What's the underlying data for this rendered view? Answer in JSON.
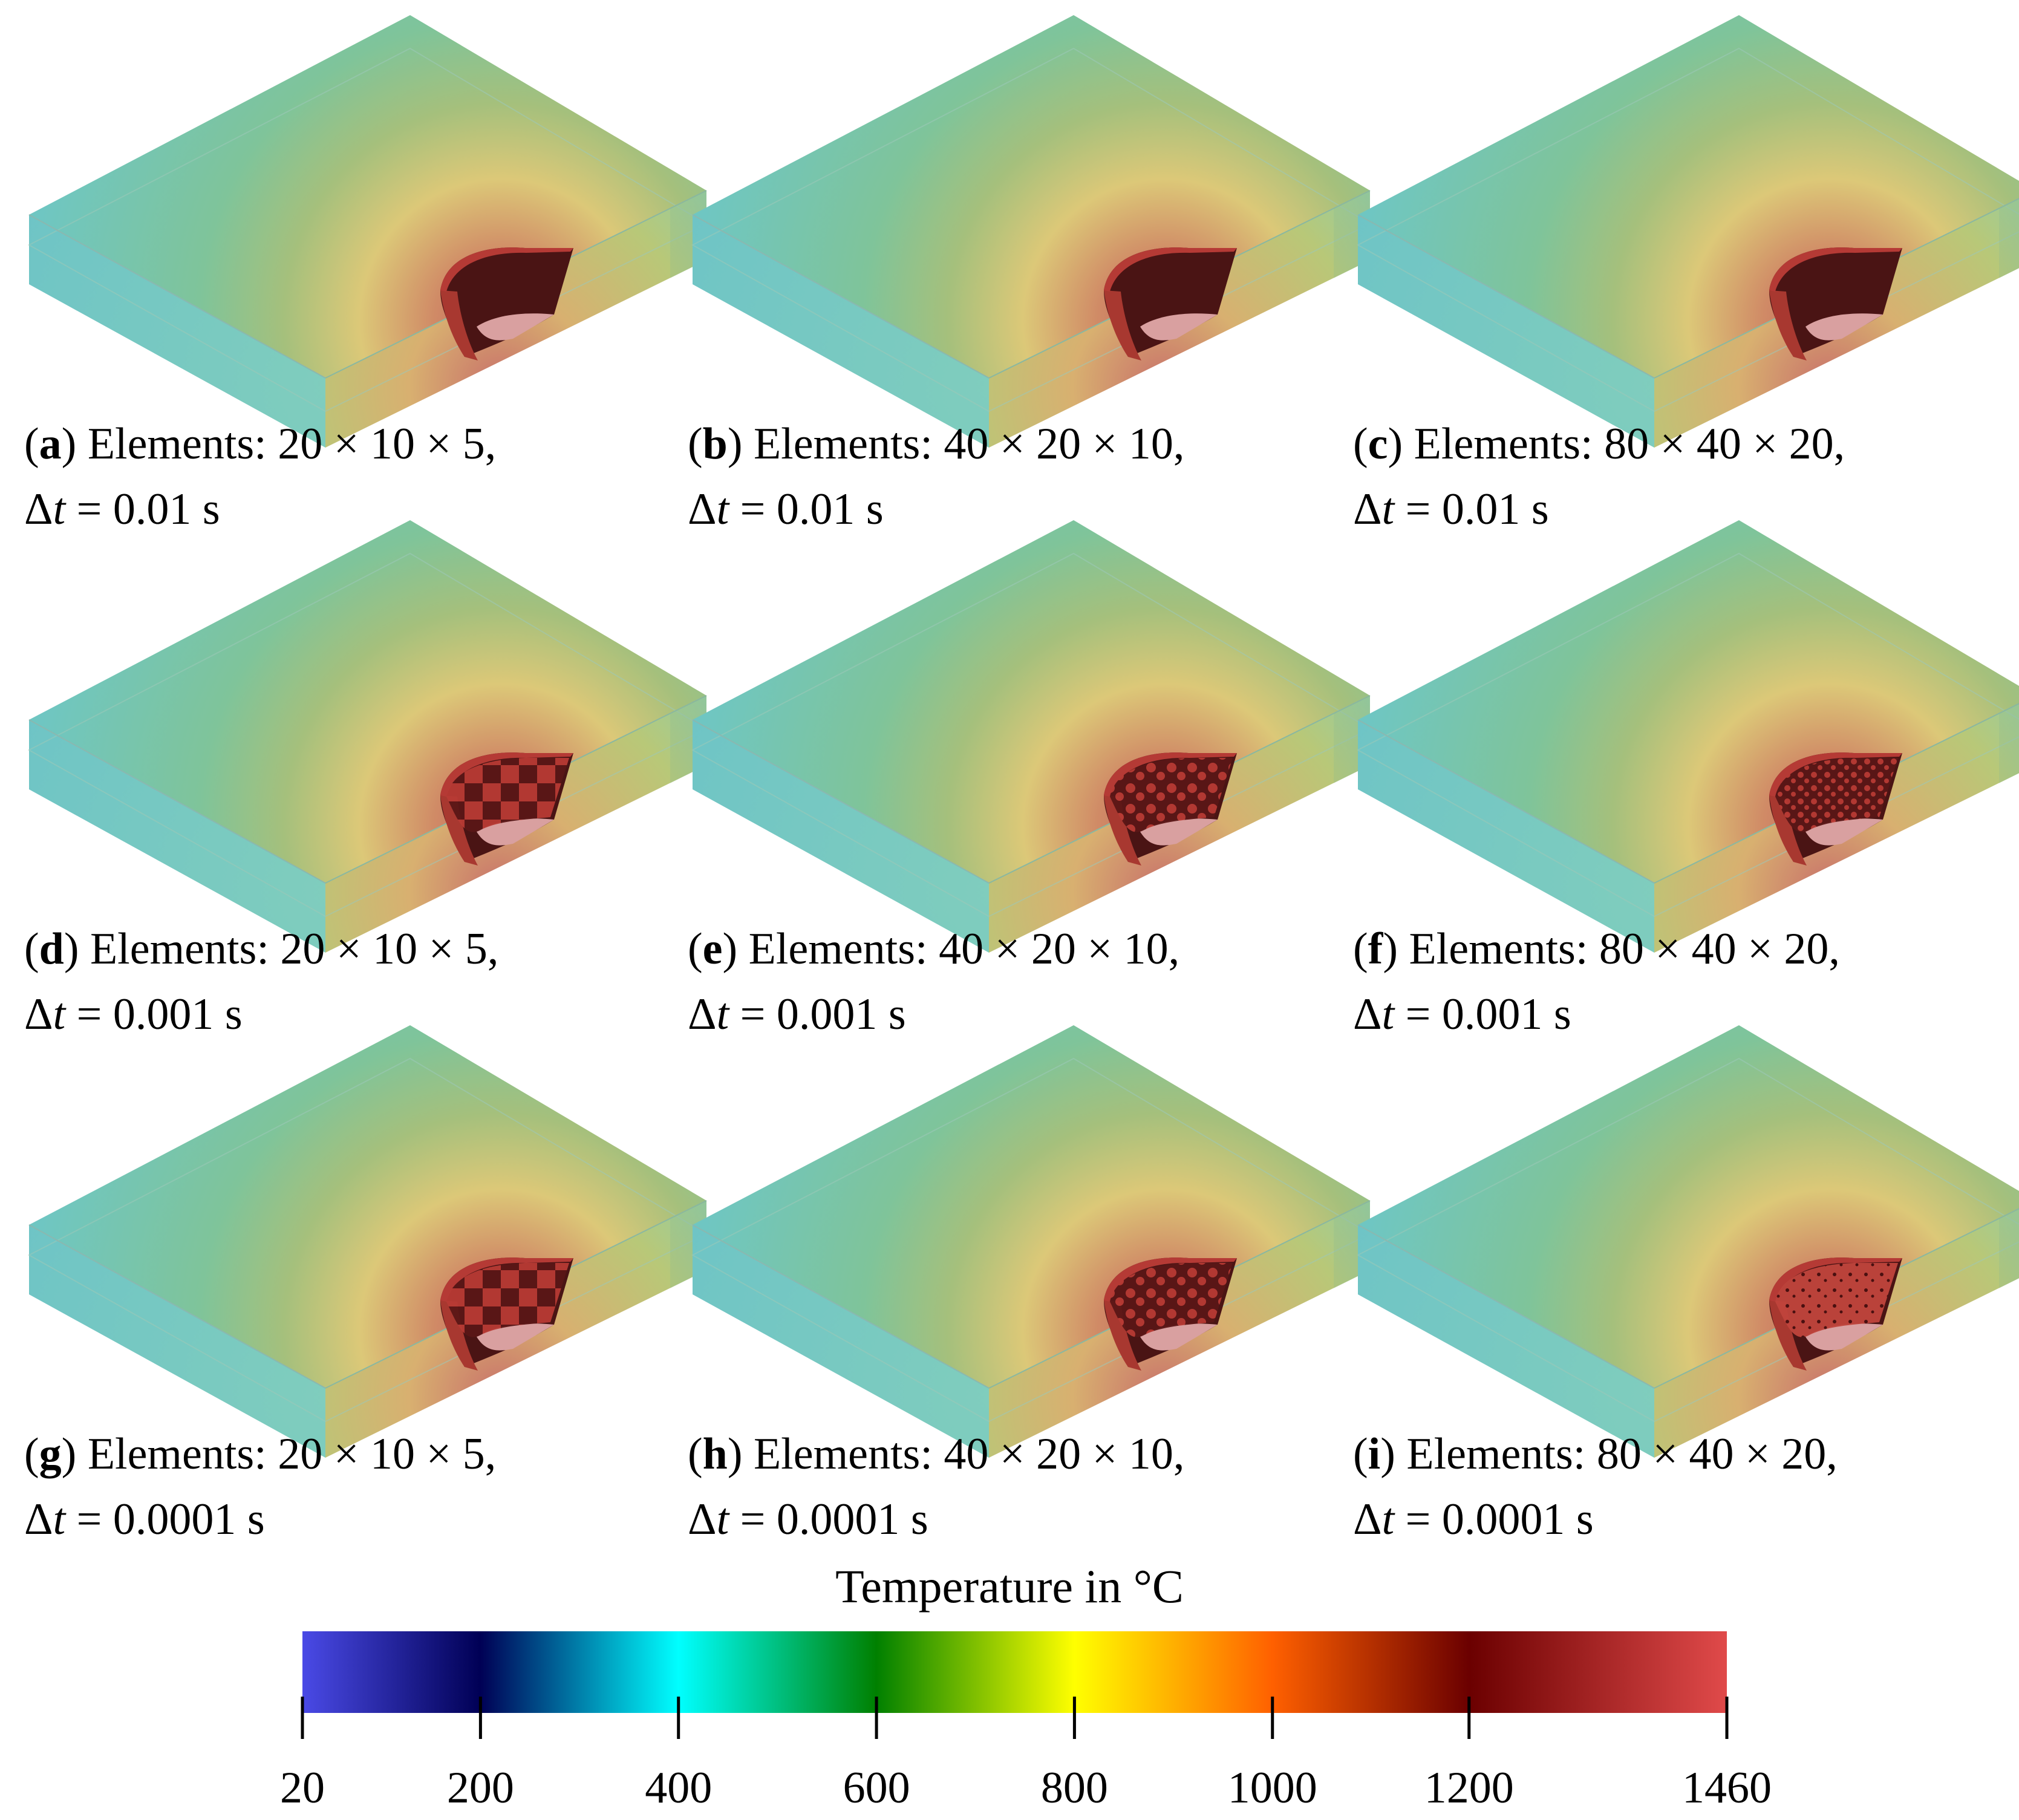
{
  "figure": {
    "panels": [
      {
        "letter": "a",
        "elements_label": "Elements:",
        "elements": "20 × 10 × 5,",
        "delta": "Δ",
        "t": "t",
        "dt": " = 0.01 s",
        "interior": "solid"
      },
      {
        "letter": "b",
        "elements_label": "Elements:",
        "elements": "40 × 20 × 10,",
        "delta": "Δ",
        "t": "t",
        "dt": " = 0.01 s",
        "interior": "solid"
      },
      {
        "letter": "c",
        "elements_label": "Elements:",
        "elements": "80 × 40 × 20,",
        "delta": "Δ",
        "t": "t",
        "dt": " = 0.01 s",
        "interior": "solid"
      },
      {
        "letter": "d",
        "elements_label": "Elements:",
        "elements": "20 × 10 × 5,",
        "delta": "Δ",
        "t": "t",
        "dt": " = 0.001 s",
        "interior": "coarse"
      },
      {
        "letter": "e",
        "elements_label": "Elements:",
        "elements": "40 × 20 × 10,",
        "delta": "Δ",
        "t": "t",
        "dt": " = 0.001 s",
        "interior": "medium"
      },
      {
        "letter": "f",
        "elements_label": "Elements:",
        "elements": "80 × 40 × 20,",
        "delta": "Δ",
        "t": "t",
        "dt": " = 0.001 s",
        "interior": "fine"
      },
      {
        "letter": "g",
        "elements_label": "Elements:",
        "elements": "20 × 10 × 5,",
        "delta": "Δ",
        "t": "t",
        "dt": " = 0.0001 s",
        "interior": "coarse"
      },
      {
        "letter": "h",
        "elements_label": "Elements:",
        "elements": "40 × 20 × 10,",
        "delta": "Δ",
        "t": "t",
        "dt": " = 0.0001 s",
        "interior": "medium"
      },
      {
        "letter": "i",
        "elements_label": "Elements:",
        "elements": "80 × 40 × 20,",
        "delta": "Δ",
        "t": "t",
        "dt": " = 0.0001 s",
        "interior": "speckled"
      }
    ]
  },
  "colorbar": {
    "title": "Temperature in °C",
    "min": 20,
    "max": 1460,
    "ticks": [
      20,
      200,
      400,
      600,
      800,
      1000,
      1200,
      1460
    ],
    "tick_labels": [
      "20",
      "200",
      "400",
      "600",
      "800",
      "1000",
      "1200",
      "1460"
    ],
    "stops": [
      {
        "value": 20,
        "color": "#4a4ae6"
      },
      {
        "value": 200,
        "color": "#000055"
      },
      {
        "value": 400,
        "color": "#00ffff"
      },
      {
        "value": 600,
        "color": "#008000"
      },
      {
        "value": 800,
        "color": "#ffff00"
      },
      {
        "value": 1000,
        "color": "#ff6000"
      },
      {
        "value": 1200,
        "color": "#6b0000"
      },
      {
        "value": 1460,
        "color": "#e04a4a"
      }
    ]
  },
  "colors": {
    "plate_edge": "#6fc6c2",
    "plate_warm": "#e6d870",
    "plate_hot": "#d4776a",
    "melt_pool": "#4a1414",
    "melt_pool_rim": "#b53a35",
    "melt_pool_bottom": "#d9a0a0"
  }
}
